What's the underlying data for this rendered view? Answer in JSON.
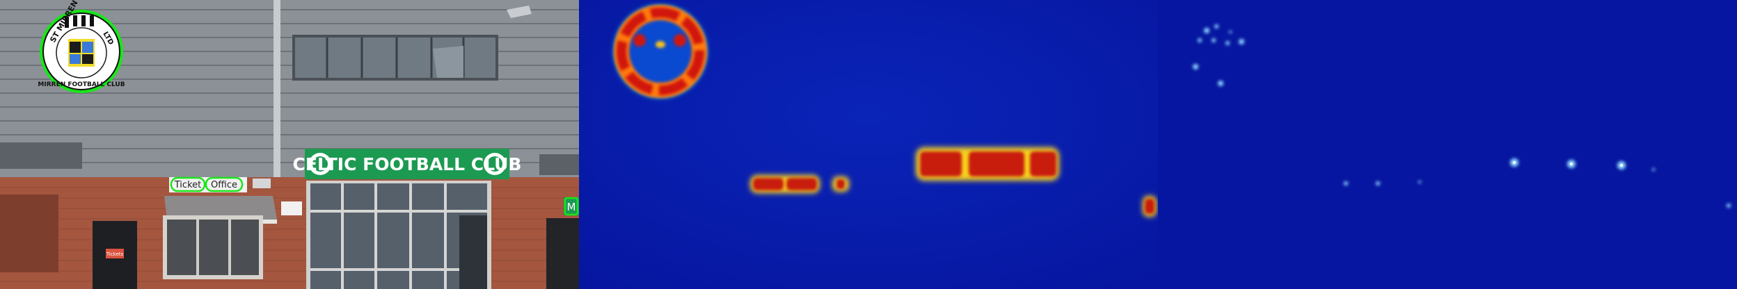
{
  "panels": [
    {
      "label": "original-photo"
    },
    {
      "label": "heatmap-text-region"
    },
    {
      "label": "heatmap-character-centers"
    }
  ],
  "scene": {
    "badge_top_text": "ST MIRREN",
    "badge_right_text": "LTD",
    "badge_bottom_text": "MIRREN FOOTBALL CLUB",
    "ticket_sign_word1": "Ticket",
    "ticket_sign_word2": "Office",
    "club_sign": "CELTIC FOOTBALL CLUB",
    "side_sign_letter": "M",
    "door_sign": "Tickets",
    "colors": {
      "cladding": "#8e9399",
      "brick": "#a4563f",
      "sign_green": "#1d9a52",
      "detection_green": "#19e619",
      "heatmap_bg": "#0a1aa8",
      "heatmap_hot": "#c41a10"
    }
  }
}
